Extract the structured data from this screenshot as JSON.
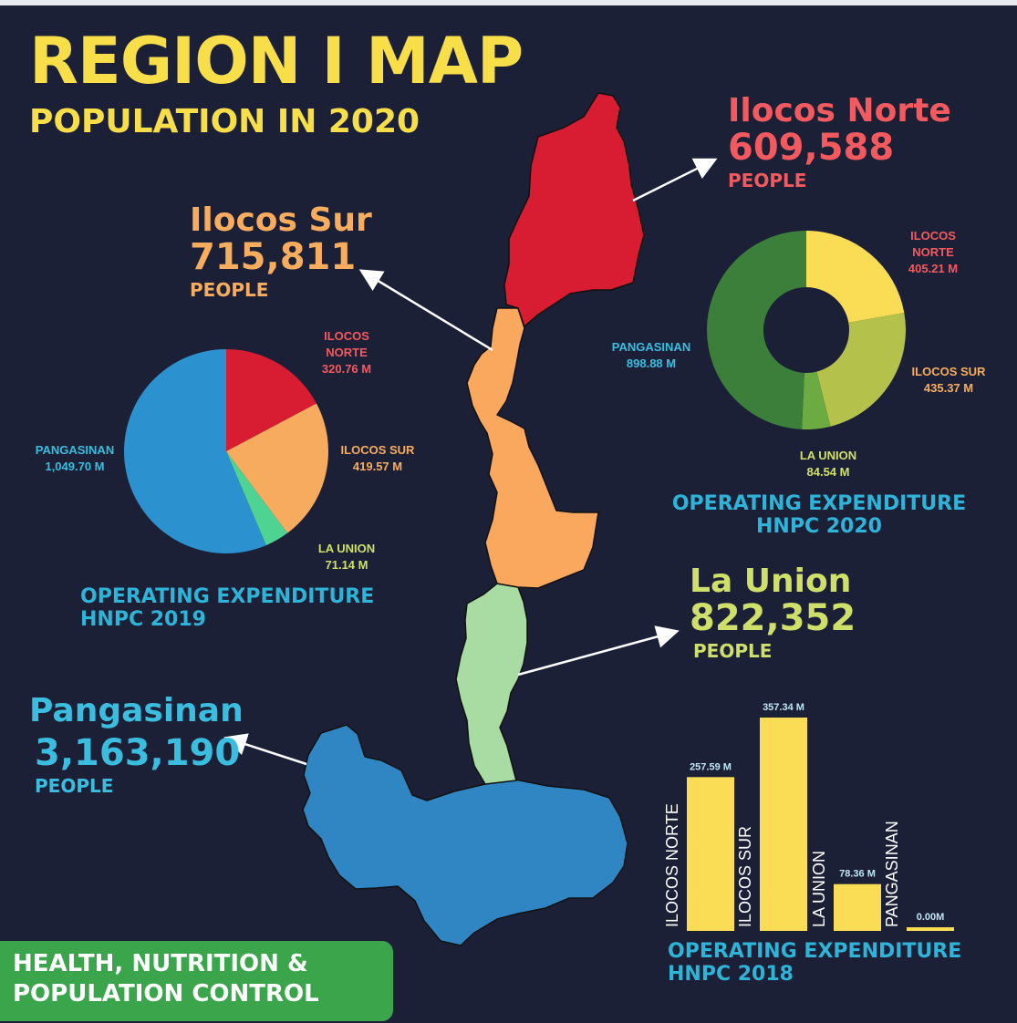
{
  "title": "REGION I MAP",
  "subtitle": "POPULATION IN 2020",
  "provinces": {
    "ilocos_norte": {
      "name": "Ilocos Norte",
      "population": "609,588",
      "unit": "PEOPLE",
      "color": "#f25a5f"
    },
    "ilocos_sur": {
      "name": "Ilocos Sur",
      "population": "715,811",
      "unit": "PEOPLE",
      "color": "#f8ad5e"
    },
    "la_union": {
      "name": "La Union",
      "population": "822,352",
      "unit": "PEOPLE",
      "color": "#cfe06a"
    },
    "pangasinan": {
      "name": "Pangasinan",
      "population": "3,163,190",
      "unit": "PEOPLE",
      "color": "#3bbde0"
    }
  },
  "map_colors": {
    "ilocos_norte": "#d81c32",
    "ilocos_sur": "#f9a85e",
    "la_union": "#a8dca2",
    "pangasinan": "#2f86c2"
  },
  "chart_data": [
    {
      "type": "pie",
      "title_lines": [
        "OPERATING EXPENDITURE",
        "HNPC 2019"
      ],
      "categories": [
        "ILOCOS NORTE",
        "ILOCOS SUR",
        "LA UNION",
        "PANGASINAN"
      ],
      "values": [
        320.76,
        419.57,
        71.14,
        1049.7
      ],
      "value_labels": [
        "320.76 M",
        "419.57 M",
        "71.14 M",
        "1,049.70 M"
      ],
      "label_lines": [
        [
          "ILOCOS",
          "NORTE",
          "320.76 M"
        ],
        [
          "ILOCOS SUR",
          "419.57 M"
        ],
        [
          "LA UNION",
          "71.14 M"
        ],
        [
          "PANGASINAN",
          "1,049.70 M"
        ]
      ],
      "colors": [
        "#d81c32",
        "#f7ab5e",
        "#4ed393",
        "#2c91cf"
      ],
      "label_colors": [
        "#f25a5f",
        "#f8ad5e",
        "#cfe06a",
        "#3bbde0"
      ]
    },
    {
      "type": "donut",
      "title_lines": [
        "OPERATING EXPENDITURE",
        "HNPC 2020"
      ],
      "categories": [
        "ILOCOS NORTE",
        "ILOCOS SUR",
        "LA UNION",
        "PANGASINAN"
      ],
      "values": [
        405.21,
        435.37,
        84.54,
        898.88
      ],
      "value_labels": [
        "405.21 M",
        "435.37 M",
        "84.54 M",
        "898.88 M"
      ],
      "label_lines": [
        [
          "ILOCOS",
          "NORTE",
          "405.21 M"
        ],
        [
          "ILOCOS SUR",
          "435.37 M"
        ],
        [
          "LA UNION",
          "84.54 M"
        ],
        [
          "PANGASINAN",
          "898.88 M"
        ]
      ],
      "colors": [
        "#fbdc55",
        "#b4c24c",
        "#6bab42",
        "#3b7f3a"
      ],
      "label_colors": [
        "#f25a5f",
        "#f8ad5e",
        "#cfe06a",
        "#3bbde0"
      ]
    },
    {
      "type": "bar",
      "title_lines": [
        "OPERATING EXPENDITURE",
        "HNPC 2018"
      ],
      "categories": [
        "ILOCOS NORTE",
        "ILOCOS SUR",
        "LA UNION",
        "PANGASINAN"
      ],
      "values": [
        257.59,
        357.34,
        78.36,
        0.0
      ],
      "value_labels": [
        "257.59 M",
        "357.34 M",
        "78.36 M",
        "0.00M"
      ],
      "bar_color": "#fbdc55",
      "value_label_color": "#bfe6f5",
      "category_label_color": "#ffffff"
    }
  ],
  "badge": {
    "lines": [
      "HEALTH, NUTRITION &",
      "POPULATION CONTROL"
    ],
    "color": "#3aa54a"
  }
}
